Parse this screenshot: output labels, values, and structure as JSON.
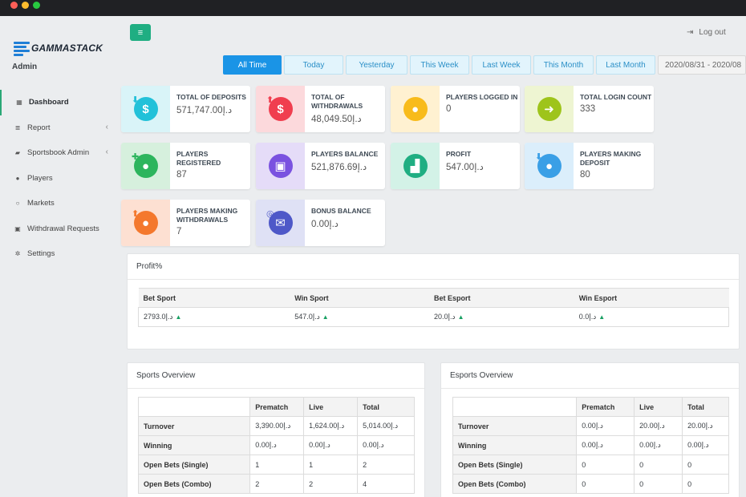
{
  "window": {
    "buttons": [
      "close",
      "minimize",
      "maximize"
    ]
  },
  "brand": {
    "name": "GAMMASTACK",
    "role": "Admin",
    "accent": "#1fae82"
  },
  "sidebar": {
    "items": [
      {
        "label": "Dashboard",
        "icon": "dashboard-icon",
        "glyph": "▦",
        "active": true,
        "chevron": ""
      },
      {
        "label": "Report",
        "icon": "report-icon",
        "glyph": "≣",
        "active": false,
        "chevron": "‹"
      },
      {
        "label": "Sportsbook Admin",
        "icon": "book-icon",
        "glyph": "▰",
        "active": false,
        "chevron": "‹"
      },
      {
        "label": "Players",
        "icon": "user-icon",
        "glyph": "●",
        "active": false,
        "chevron": ""
      },
      {
        "label": "Markets",
        "icon": "circle-icon",
        "glyph": "○",
        "active": false,
        "chevron": ""
      },
      {
        "label": "Withdrawal Requests",
        "icon": "money-icon",
        "glyph": "▣",
        "active": false,
        "chevron": ""
      },
      {
        "label": "Settings",
        "icon": "cogs-icon",
        "glyph": "✲",
        "active": false,
        "chevron": ""
      }
    ]
  },
  "header": {
    "menu_glyph": "≡",
    "logout_label": "Log out",
    "logout_glyph": "⇥"
  },
  "filters": {
    "buttons": [
      "All Time",
      "Today",
      "Yesterday",
      "This Week",
      "Last Week",
      "This Month",
      "Last Month"
    ],
    "active": "All Time",
    "date_range": "2020/08/31 - 2020/08"
  },
  "cards": [
    {
      "label": "TOTAL OF DEPOSITS",
      "value": "571,747.00د.إ",
      "icon": "dollar-down-icon",
      "glyph": "$",
      "badge": "⬇",
      "bg": "#d9f4f8",
      "color": "#22c1d9"
    },
    {
      "label": "TOTAL OF WITHDRAWALS",
      "value": "48,049.50د.إ",
      "icon": "dollar-up-icon",
      "glyph": "$",
      "badge": "⬆",
      "bg": "#fcd9dc",
      "color": "#f03e4f"
    },
    {
      "label": "PLAYERS LOGGED IN",
      "value": "0",
      "icon": "user-icon",
      "glyph": "●",
      "badge": "",
      "bg": "#fff1d1",
      "color": "#f8bb1b"
    },
    {
      "label": "TOTAL LOGIN COUNT",
      "value": "333",
      "icon": "arrow-right-icon",
      "glyph": "➜",
      "badge": "",
      "bg": "#eef5d2",
      "color": "#9ec41b"
    },
    {
      "label": "PLAYERS REGISTERED",
      "value": "87",
      "icon": "user-plus-icon",
      "glyph": "●",
      "badge": "✚",
      "bg": "#d6f0dd",
      "color": "#2db55d"
    },
    {
      "label": "PLAYERS BALANCE",
      "value": "521,876.69د.إ",
      "icon": "money-icon",
      "glyph": "▣",
      "badge": "",
      "bg": "#e5dcf8",
      "color": "#7a52e0"
    },
    {
      "label": "PROFIT",
      "value": "547.00د.إ",
      "icon": "chart-icon",
      "glyph": "▟",
      "badge": "",
      "bg": "#d3f2e7",
      "color": "#1fae82"
    },
    {
      "label": "PLAYERS MAKING DEPOSIT",
      "value": "80",
      "icon": "user-down-icon",
      "glyph": "●",
      "badge": "⬇",
      "bg": "#dbeefb",
      "color": "#3a9fe6"
    },
    {
      "label": "PLAYERS MAKING WITHDRAWALS",
      "value": "7",
      "icon": "user-up-icon",
      "glyph": "●",
      "badge": "⬆",
      "bg": "#fde0d2",
      "color": "#f4782d"
    },
    {
      "label": "BONUS BALANCE",
      "value": "0.00د.إ",
      "icon": "gift-icon",
      "glyph": "✉",
      "badge": "◎",
      "bg": "#dfe1f5",
      "color": "#4e58c8"
    }
  ],
  "profit": {
    "title": "Profit%",
    "columns": [
      "Bet Sport",
      "Win Sport",
      "Bet Esport",
      "Win Esport"
    ],
    "values": [
      "2793.0د.إ",
      "547.0د.إ",
      "20.0د.إ",
      "0.0د.إ"
    ],
    "trend_glyph": "▲"
  },
  "sports": {
    "title": "Sports Overview",
    "columns": [
      "",
      "Prematch",
      "Live",
      "Total"
    ],
    "rows": [
      {
        "label": "Turnover",
        "cells": [
          "3,390.00د.إ",
          "1,624.00د.إ",
          "5,014.00د.إ"
        ]
      },
      {
        "label": "Winning",
        "cells": [
          "0.00د.إ",
          "0.00د.إ",
          "0.00د.إ"
        ]
      },
      {
        "label": "Open Bets (Single)",
        "cells": [
          "1",
          "1",
          "2"
        ]
      },
      {
        "label": "Open Bets (Combo)",
        "cells": [
          "2",
          "2",
          "4"
        ]
      }
    ]
  },
  "esports": {
    "title": "Esports Overview",
    "columns": [
      "",
      "Prematch",
      "Live",
      "Total"
    ],
    "rows": [
      {
        "label": "Turnover",
        "cells": [
          "0.00د.إ",
          "20.00د.إ",
          "20.00د.إ"
        ]
      },
      {
        "label": "Winning",
        "cells": [
          "0.00د.إ",
          "0.00د.إ",
          "0.00د.إ"
        ]
      },
      {
        "label": "Open Bets (Single)",
        "cells": [
          "0",
          "0",
          "0"
        ]
      },
      {
        "label": "Open Bets (Combo)",
        "cells": [
          "0",
          "0",
          "0"
        ]
      }
    ]
  }
}
